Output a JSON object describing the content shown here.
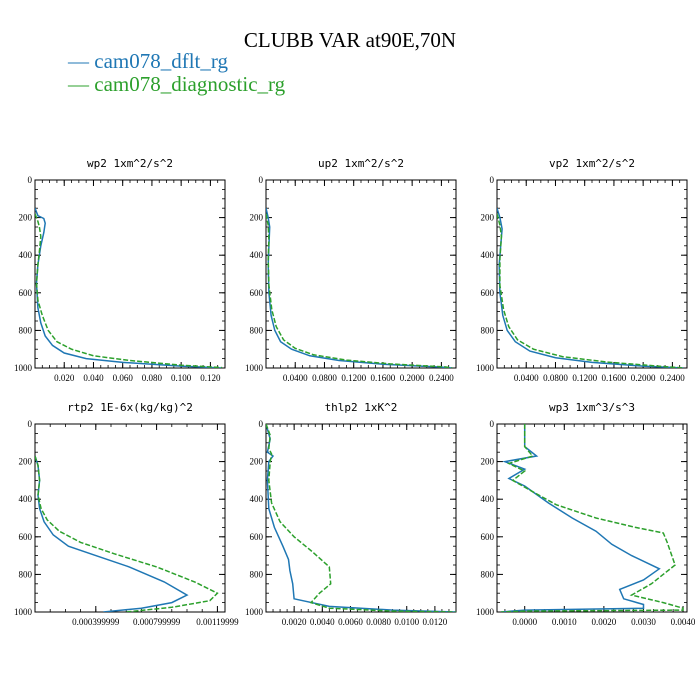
{
  "header": {
    "title": "CLUBB VAR at90E,70N"
  },
  "legend": [
    {
      "dash": "—",
      "label": "cam078_dflt_rg",
      "color": "#1f77b4"
    },
    {
      "dash": "—",
      "label": "cam078_diagnostic_rg",
      "color": "#2ca02c"
    }
  ],
  "chart_data": [
    {
      "type": "line",
      "title": "wp2   1xm^2/s^2",
      "xlim": [
        0.0,
        0.13
      ],
      "ylim": [
        1000,
        0
      ],
      "xticks": [
        0.02,
        0.04,
        0.06,
        0.08,
        0.1,
        0.12
      ],
      "xtick_labels": [
        "0.020",
        "0.040",
        "0.060",
        "0.080",
        "0.100",
        "0.120"
      ],
      "yticks": [
        0,
        200,
        400,
        600,
        800,
        1000
      ],
      "ytick_labels": [
        "0",
        "200",
        "400",
        "600",
        "800",
        "1000"
      ],
      "series": [
        {
          "name": "cam078_dflt_rg",
          "color": "#1f77b4",
          "dashed": false,
          "x": [
            0.0,
            0.002,
            0.006,
            0.007,
            0.006,
            0.004,
            0.002,
            0.001,
            0.002,
            0.004,
            0.007,
            0.012,
            0.02,
            0.035,
            0.06,
            0.1,
            0.128
          ],
          "y": [
            150,
            190,
            205,
            230,
            280,
            350,
            450,
            550,
            680,
            760,
            830,
            880,
            920,
            950,
            970,
            990,
            1000
          ]
        },
        {
          "name": "cam078_diagnostic_rg",
          "color": "#2ca02c",
          "dashed": true,
          "x": [
            0.0,
            0.002,
            0.003,
            0.004,
            0.003,
            0.002,
            0.001,
            0.002,
            0.005,
            0.009,
            0.015,
            0.025,
            0.04,
            0.065,
            0.1,
            0.128
          ],
          "y": [
            180,
            220,
            250,
            300,
            380,
            450,
            550,
            640,
            720,
            800,
            860,
            900,
            935,
            960,
            985,
            998
          ]
        }
      ]
    },
    {
      "type": "line",
      "title": "up2   1xm^2/s^2",
      "xlim": [
        0.0,
        0.26
      ],
      "ylim": [
        1000,
        0
      ],
      "xticks": [
        0.04,
        0.08,
        0.12,
        0.16,
        0.2,
        0.24
      ],
      "xtick_labels": [
        "0.0400",
        "0.0800",
        "0.1200",
        "0.1600",
        "0.2000",
        "0.2400"
      ],
      "yticks": [
        0,
        200,
        400,
        600,
        800,
        1000
      ],
      "ytick_labels": [
        "0",
        "200",
        "400",
        "600",
        "800",
        "1000"
      ],
      "series": [
        {
          "name": "cam078_dflt_rg",
          "color": "#1f77b4",
          "dashed": false,
          "x": [
            0.0,
            0.003,
            0.005,
            0.004,
            0.003,
            0.004,
            0.007,
            0.012,
            0.02,
            0.035,
            0.06,
            0.1,
            0.16,
            0.24,
            0.255
          ],
          "y": [
            150,
            200,
            250,
            350,
            450,
            600,
            720,
            800,
            860,
            900,
            935,
            960,
            980,
            995,
            1000
          ]
        },
        {
          "name": "cam078_diagnostic_rg",
          "color": "#2ca02c",
          "dashed": true,
          "x": [
            0.0,
            0.003,
            0.004,
            0.003,
            0.004,
            0.008,
            0.014,
            0.024,
            0.04,
            0.065,
            0.11,
            0.17,
            0.245,
            0.255
          ],
          "y": [
            180,
            240,
            320,
            420,
            560,
            690,
            780,
            850,
            895,
            930,
            958,
            978,
            994,
            1000
          ]
        }
      ]
    },
    {
      "type": "line",
      "title": "vp2   1xm^2/s^2",
      "xlim": [
        0.0,
        0.26
      ],
      "ylim": [
        1000,
        0
      ],
      "xticks": [
        0.04,
        0.08,
        0.12,
        0.16,
        0.2,
        0.24
      ],
      "xtick_labels": [
        "0.0400",
        "0.0800",
        "0.1200",
        "0.1600",
        "0.2000",
        "0.2400"
      ],
      "yticks": [
        0,
        200,
        400,
        600,
        800,
        1000
      ],
      "ytick_labels": [
        "0",
        "200",
        "400",
        "600",
        "800",
        "1000"
      ],
      "series": [
        {
          "name": "cam078_dflt_rg",
          "color": "#1f77b4",
          "dashed": false,
          "x": [
            0.0,
            0.004,
            0.007,
            0.005,
            0.003,
            0.004,
            0.008,
            0.014,
            0.025,
            0.045,
            0.08,
            0.13,
            0.2,
            0.255
          ],
          "y": [
            150,
            200,
            260,
            350,
            450,
            600,
            720,
            800,
            860,
            910,
            945,
            970,
            990,
            1000
          ]
        },
        {
          "name": "cam078_diagnostic_rg",
          "color": "#2ca02c",
          "dashed": true,
          "x": [
            0.0,
            0.004,
            0.006,
            0.004,
            0.004,
            0.009,
            0.016,
            0.028,
            0.05,
            0.09,
            0.15,
            0.22,
            0.255
          ],
          "y": [
            180,
            240,
            300,
            420,
            560,
            690,
            780,
            850,
            900,
            940,
            968,
            990,
            1000
          ]
        }
      ]
    },
    {
      "type": "line",
      "title": "rtp2   1E-6x(kg/kg)^2",
      "xlim": [
        0.0,
        0.00125
      ],
      "ylim": [
        1000,
        0
      ],
      "xticks": [
        0.0004,
        0.0008,
        0.0012
      ],
      "xtick_labels": [
        "0.000399999",
        "0.000799999",
        "0.00119999"
      ],
      "yticks": [
        0,
        200,
        400,
        600,
        800,
        1000
      ],
      "ytick_labels": [
        "0",
        "200",
        "400",
        "600",
        "800",
        "1000"
      ],
      "series": [
        {
          "name": "cam078_dflt_rg",
          "color": "#1f77b4",
          "dashed": false,
          "x": [
            0.0,
            2e-05,
            3e-05,
            2e-05,
            3e-05,
            6e-05,
            0.00012,
            0.00022,
            0.0004,
            0.00062,
            0.00085,
            0.001,
            0.0009,
            0.0007,
            0.00045
          ],
          "y": [
            170,
            220,
            300,
            380,
            450,
            520,
            590,
            650,
            700,
            760,
            840,
            910,
            950,
            980,
            1000
          ]
        },
        {
          "name": "cam078_diagnostic_rg",
          "color": "#2ca02c",
          "dashed": true,
          "x": [
            0.0,
            2e-05,
            3e-05,
            2e-05,
            4e-05,
            8e-05,
            0.00016,
            0.0003,
            0.00052,
            0.0008,
            0.00105,
            0.0012,
            0.00115,
            0.0009,
            0.0006
          ],
          "y": [
            170,
            220,
            300,
            380,
            450,
            510,
            570,
            630,
            690,
            760,
            840,
            900,
            940,
            975,
            1000
          ]
        }
      ]
    },
    {
      "type": "line",
      "title": "thlp2   1xK^2",
      "xlim": [
        0.0,
        0.0135
      ],
      "ylim": [
        1000,
        0
      ],
      "xticks": [
        0.002,
        0.004,
        0.006,
        0.008,
        0.01,
        0.012
      ],
      "xtick_labels": [
        "0.0020",
        "0.0040",
        "0.0060",
        "0.0080",
        "0.0100",
        "0.0120"
      ],
      "yticks": [
        0,
        200,
        400,
        600,
        800,
        1000
      ],
      "ytick_labels": [
        "0",
        "200",
        "400",
        "600",
        "800",
        "1000"
      ],
      "series": [
        {
          "name": "cam078_dflt_rg",
          "color": "#1f77b4",
          "dashed": false,
          "x": [
            0.0,
            0.0003,
            0.0001,
            0.0005,
            0.0002,
            0.0001,
            0.0002,
            0.0006,
            0.0012,
            0.0016,
            0.0017,
            0.0019,
            0.002,
            0.0045,
            0.009,
            0.0135
          ],
          "y": [
            0,
            80,
            150,
            170,
            200,
            300,
            450,
            550,
            650,
            720,
            780,
            850,
            930,
            970,
            990,
            1000
          ]
        },
        {
          "name": "cam078_diagnostic_rg",
          "color": "#2ca02c",
          "dashed": true,
          "x": [
            0.0,
            0.0003,
            0.0002,
            0.0004,
            0.0003,
            0.0002,
            0.0004,
            0.001,
            0.002,
            0.0033,
            0.0045,
            0.0046,
            0.0038,
            0.0032,
            0.0045,
            0.009,
            0.0135
          ],
          "y": [
            0,
            60,
            130,
            160,
            200,
            300,
            420,
            520,
            600,
            680,
            760,
            850,
            900,
            950,
            980,
            995,
            1000
          ]
        }
      ]
    },
    {
      "type": "line",
      "title": "wp3   1xm^3/s^3",
      "xlim": [
        -0.0007,
        0.0041
      ],
      "ylim": [
        1000,
        0
      ],
      "xticks": [
        0.0,
        0.001,
        0.002,
        0.003,
        0.004
      ],
      "xtick_labels": [
        "0.0000",
        "0.0010",
        "0.0020",
        "0.0030",
        "0.0040"
      ],
      "yticks": [
        0,
        200,
        400,
        600,
        800,
        1000
      ],
      "ytick_labels": [
        "0",
        "200",
        "400",
        "600",
        "800",
        "1000"
      ],
      "series": [
        {
          "name": "cam078_dflt_rg",
          "color": "#1f77b4",
          "dashed": false,
          "x": [
            0.0,
            0.0,
            0.0003,
            -0.0005,
            0.0,
            -0.0004,
            0.0,
            0.0006,
            0.0012,
            0.0018,
            0.0022,
            0.0027,
            0.0034,
            0.003,
            0.0024,
            0.0025,
            0.003,
            0.003,
            0.0,
            -0.0006
          ],
          "y": [
            0,
            120,
            170,
            200,
            240,
            290,
            330,
            420,
            500,
            570,
            640,
            700,
            770,
            830,
            880,
            930,
            960,
            980,
            990,
            1000
          ]
        },
        {
          "name": "cam078_diagnostic_rg",
          "color": "#2ca02c",
          "dashed": true,
          "x": [
            0.0,
            0.0,
            0.0002,
            -0.0004,
            0.0,
            -0.0003,
            0.0002,
            0.0008,
            0.0018,
            0.0028,
            0.0035,
            0.0036,
            0.0038,
            0.0032,
            0.0027,
            0.0035,
            0.004,
            0.004,
            0.0,
            -0.0006
          ],
          "y": [
            0,
            120,
            170,
            210,
            250,
            300,
            360,
            430,
            500,
            550,
            580,
            630,
            750,
            850,
            910,
            950,
            980,
            990,
            995,
            1000
          ]
        }
      ]
    }
  ]
}
